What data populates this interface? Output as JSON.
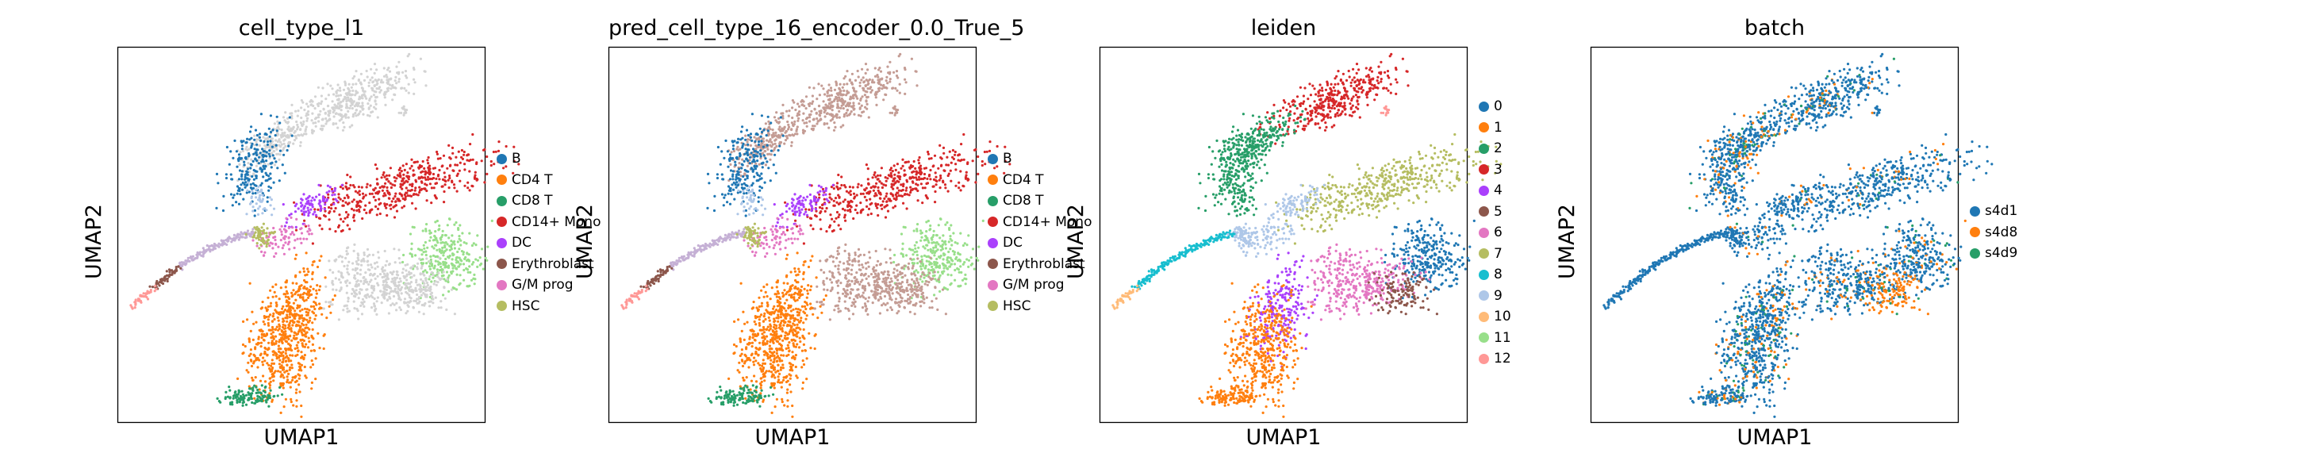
{
  "colors": {
    "B": "#1f77b4",
    "CD4 T": "#ff7f0e",
    "CD8 T": "#279e68",
    "CD14+ Mono": "#d62728",
    "DC": "#aa40fc",
    "Erythroblast": "#8c564b",
    "G/M prog": "#e377c2",
    "HSC": "#b5bd61",
    "unknown": "#d3d3d3",
    "leiden": [
      "#1f77b4",
      "#ff7f0e",
      "#279e68",
      "#d62728",
      "#aa40fc",
      "#8c564b",
      "#e377c2",
      "#b5bd61",
      "#17becf",
      "#aec7e8",
      "#ffbb78",
      "#98df8a",
      "#ff9896"
    ],
    "batch": [
      "#1f77b4",
      "#ff7f0e",
      "#279e68"
    ]
  },
  "chart_data": [
    {
      "type": "scatter",
      "title": "cell_type_l1",
      "xlabel": "UMAP1",
      "ylabel": "UMAP2",
      "legend_placement": "right",
      "legend": [
        "B",
        "CD4 T",
        "CD8 T",
        "CD14+ Mono",
        "DC",
        "Erythroblast",
        "G/M prog",
        "HSC"
      ]
    },
    {
      "type": "scatter",
      "title": "pred_cell_type_16_encoder_0.0_True_5",
      "xlabel": "UMAP1",
      "ylabel": "UMAP2",
      "legend_placement": "right",
      "legend": [
        "B",
        "CD4 T",
        "CD8 T",
        "CD14+ Mono",
        "DC",
        "Erythroblast",
        "G/M prog",
        "HSC"
      ]
    },
    {
      "type": "scatter",
      "title": "leiden",
      "xlabel": "UMAP1",
      "ylabel": "UMAP2",
      "legend_placement": "right",
      "legend": [
        "0",
        "1",
        "2",
        "3",
        "4",
        "5",
        "6",
        "7",
        "8",
        "9",
        "10",
        "11",
        "12"
      ]
    },
    {
      "type": "scatter",
      "title": "batch",
      "xlabel": "UMAP1",
      "ylabel": "UMAP2",
      "legend_placement": "right",
      "legend": [
        "s4d1",
        "s4d8",
        "s4d9"
      ]
    }
  ]
}
